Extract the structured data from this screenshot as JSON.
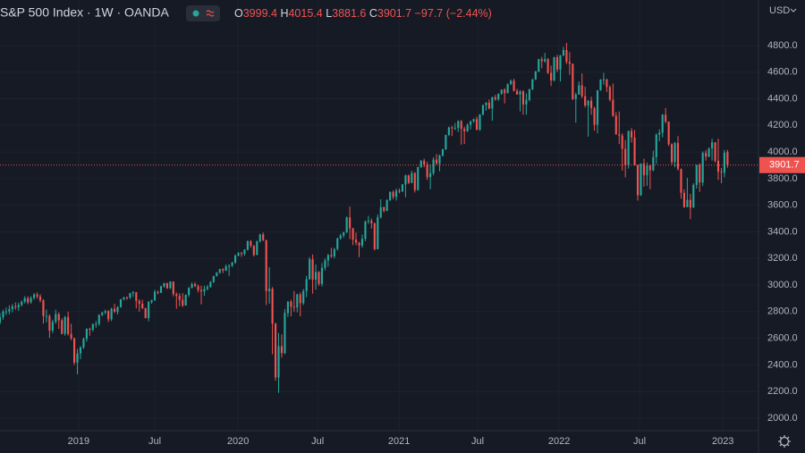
{
  "chart_data": {
    "type": "candlestick",
    "title": "S&P 500 Index · 1W · OANDA",
    "ohlc_labels": [
      "O",
      "H",
      "L",
      "C"
    ],
    "change_label": "−97.7 (−2.44%)",
    "currency": "USD",
    "up_color": "#26a69a",
    "down_color": "#ef5350",
    "grid": true,
    "xlim": [
      0,
      245
    ],
    "xticks": [
      {
        "value": 25.4,
        "label": "2019"
      },
      {
        "value": 50,
        "label": "Jul"
      },
      {
        "value": 76.9,
        "label": "2020"
      },
      {
        "value": 102.6,
        "label": "Jul"
      },
      {
        "value": 128.9,
        "label": "2021"
      },
      {
        "value": 154.3,
        "label": "Jul"
      },
      {
        "value": 180.6,
        "label": "2022"
      },
      {
        "value": 206.6,
        "label": "Jul"
      },
      {
        "value": 233.5,
        "label": "2023"
      }
    ],
    "ylim": [
      1906,
      5142
    ],
    "yticks": [
      {
        "value": 2000,
        "label": "2000.0"
      },
      {
        "value": 2200,
        "label": "2200.0"
      },
      {
        "value": 2400,
        "label": "2400.0"
      },
      {
        "value": 2600,
        "label": "2600.0"
      },
      {
        "value": 2800,
        "label": "2800.0"
      },
      {
        "value": 3000,
        "label": "3000.0"
      },
      {
        "value": 3200,
        "label": "3200.0"
      },
      {
        "value": 3400,
        "label": "3400.0"
      },
      {
        "value": 3600,
        "label": "3600.0"
      },
      {
        "value": 3800,
        "label": "3800.0"
      },
      {
        "value": 4000,
        "label": "4000.0"
      },
      {
        "value": 4200,
        "label": "4200.0"
      },
      {
        "value": 4400,
        "label": "4400.0"
      },
      {
        "value": 4600,
        "label": "4600.0"
      },
      {
        "value": 4800,
        "label": "4800.0"
      }
    ],
    "open": [
      2720,
      2759,
      2801,
      2802,
      2819,
      2840,
      2833,
      2850,
      2875,
      2902,
      2871,
      2904,
      2929,
      2914,
      2885,
      2767,
      2768,
      2658,
      2723,
      2781,
      2736,
      2633,
      2760,
      2633,
      2599,
      2417,
      2486,
      2532,
      2596,
      2671,
      2665,
      2707,
      2708,
      2776,
      2793,
      2804,
      2743,
      2822,
      2800,
      2834,
      2893,
      2907,
      2905,
      2940,
      2946,
      2881,
      2860,
      2826,
      2752,
      2873,
      2887,
      2950,
      2942,
      2990,
      3014,
      2977,
      3026,
      2932,
      2919,
      2889,
      2847,
      2926,
      2979,
      3007,
      2992,
      2962,
      2952,
      2970,
      2986,
      3023,
      3067,
      3093,
      3120,
      3110,
      3141,
      3146,
      3169,
      3221,
      3240,
      3235,
      3265,
      3330,
      3295,
      3226,
      3328,
      3380,
      3338,
      2954,
      2972,
      2711,
      2305,
      2541,
      2489,
      2790,
      2875,
      2837,
      2831,
      2930,
      2864,
      2955,
      3044,
      3194,
      3041,
      3098,
      3009,
      3130,
      3185,
      3225,
      3216,
      3271,
      3351,
      3373,
      3397,
      3508,
      3427,
      3341,
      3319,
      3298,
      3348,
      3477,
      3484,
      3465,
      3270,
      3509,
      3585,
      3558,
      3638,
      3699,
      3663,
      3709,
      3703,
      3756,
      3824,
      3768,
      3841,
      3714,
      3886,
      3934,
      3906,
      3811,
      3841,
      3943,
      3913,
      3974,
      4020,
      4128,
      4185,
      4180,
      4181,
      4232,
      4174,
      4156,
      4204,
      4230,
      4247,
      4166,
      4281,
      4352,
      4370,
      4327,
      4412,
      4395,
      4437,
      4468,
      4442,
      4509,
      4535,
      4459,
      4432,
      4455,
      4357,
      4391,
      4471,
      4545,
      4605,
      4697,
      4682,
      4698,
      4595,
      4538,
      4712,
      4620,
      4725,
      4766,
      4677,
      4663,
      4398,
      4432,
      4501,
      4419,
      4349,
      4385,
      4329,
      4204,
      4463,
      4543,
      4546,
      4488,
      4392,
      4272,
      4132,
      4123,
      4024,
      3901,
      4158,
      4109,
      3901,
      3675,
      3912,
      3825,
      3899,
      3863,
      3962,
      4130,
      4145,
      4280,
      4228,
      4058,
      3924,
      4067,
      3873,
      3693,
      3586,
      3640,
      3583,
      3752,
      3901,
      3771,
      3993,
      3965,
      4026,
      4072,
      3934,
      3852,
      3845,
      3999.4
    ],
    "high": [
      2790,
      2815,
      2832,
      2848,
      2858,
      2870,
      2868,
      2884,
      2916,
      2915,
      2917,
      2940,
      2945,
      2931,
      2894,
      2816,
      2780,
      2740,
      2815,
      2795,
      2750,
      2768,
      2800,
      2709,
      2606,
      2520,
      2540,
      2605,
      2675,
      2680,
      2712,
      2730,
      2780,
      2800,
      2815,
      2812,
      2830,
      2860,
      2842,
      2895,
      2912,
      2915,
      2942,
      2955,
      2948,
      2893,
      2890,
      2830,
      2880,
      2890,
      2965,
      2958,
      2995,
      3018,
      3018,
      3028,
      3028,
      2945,
      2940,
      2940,
      2930,
      2985,
      3020,
      3022,
      3005,
      2995,
      2995,
      3000,
      3030,
      3070,
      3098,
      3122,
      3127,
      3155,
      3155,
      3175,
      3230,
      3248,
      3250,
      3270,
      3335,
      3338,
      3300,
      3335,
      3385,
      3395,
      3340,
      3135,
      2985,
      2715,
      2640,
      2630,
      2820,
      2880,
      2890,
      2955,
      2935,
      2945,
      2970,
      3070,
      3210,
      3230,
      3155,
      3105,
      3165,
      3200,
      3235,
      3280,
      3280,
      3355,
      3385,
      3400,
      3515,
      3590,
      3430,
      3395,
      3325,
      3380,
      3485,
      3520,
      3500,
      3468,
      3530,
      3645,
      3590,
      3645,
      3705,
      3712,
      3725,
      3725,
      3760,
      3830,
      3830,
      3860,
      3850,
      3890,
      3940,
      3950,
      3925,
      3905,
      3960,
      3985,
      3980,
      4025,
      4130,
      4190,
      4195,
      4218,
      4238,
      4240,
      4190,
      4215,
      4235,
      4250,
      4265,
      4285,
      4355,
      4375,
      4395,
      4415,
      4430,
      4440,
      4470,
      4480,
      4515,
      4545,
      4550,
      4475,
      4465,
      4465,
      4440,
      4475,
      4550,
      4610,
      4700,
      4715,
      4745,
      4705,
      4650,
      4715,
      4730,
      4730,
      4790,
      4820,
      4750,
      4665,
      4445,
      4530,
      4590,
      4490,
      4390,
      4415,
      4340,
      4465,
      4548,
      4595,
      4550,
      4500,
      4515,
      4300,
      4305,
      4140,
      4090,
      4160,
      4180,
      4165,
      3905,
      3915,
      3950,
      3920,
      3905,
      4010,
      4140,
      4170,
      4285,
      4330,
      4230,
      4065,
      4075,
      4120,
      3875,
      3720,
      3805,
      3685,
      3765,
      3905,
      3915,
      4005,
      4015,
      4035,
      4100,
      4075,
      4100,
      3880,
      4015,
      4015.4
    ],
    "low": [
      2705,
      2740,
      2775,
      2780,
      2795,
      2815,
      2806,
      2840,
      2862,
      2855,
      2860,
      2890,
      2898,
      2870,
      2710,
      2720,
      2603,
      2640,
      2710,
      2670,
      2630,
      2620,
      2621,
      2585,
      2400,
      2330,
      2443,
      2520,
      2575,
      2620,
      2650,
      2680,
      2695,
      2765,
      2780,
      2722,
      2730,
      2790,
      2780,
      2830,
      2885,
      2890,
      2895,
      2910,
      2825,
      2800,
      2820,
      2750,
      2728,
      2860,
      2880,
      2930,
      2940,
      2980,
      2970,
      2970,
      2915,
      2822,
      2840,
      2835,
      2845,
      2910,
      2975,
      2985,
      2945,
      2855,
      2920,
      2960,
      2980,
      3015,
      3065,
      3085,
      3090,
      3105,
      3070,
      3135,
      3160,
      3215,
      3212,
      3220,
      3260,
      3280,
      3215,
      3225,
      3320,
      3330,
      2850,
      2860,
      2480,
      2280,
      2190,
      2455,
      2480,
      2760,
      2765,
      2800,
      2795,
      2765,
      2850,
      2910,
      3040,
      2935,
      2965,
      2995,
      2990,
      3110,
      3140,
      3205,
      3200,
      3260,
      3340,
      3355,
      3390,
      3345,
      3300,
      3300,
      3210,
      3280,
      3330,
      3460,
      3425,
      3260,
      3268,
      3500,
      3545,
      3555,
      3630,
      3645,
      3635,
      3690,
      3700,
      3660,
      3760,
      3765,
      3695,
      3710,
      3880,
      3885,
      3790,
      3720,
      3825,
      3905,
      3855,
      3965,
      4015,
      4120,
      4120,
      4165,
      4150,
      4055,
      4060,
      4150,
      4170,
      4220,
      4165,
      4160,
      4275,
      4310,
      4320,
      4235,
      4385,
      4385,
      4430,
      4365,
      4440,
      4505,
      4455,
      4430,
      4305,
      4280,
      4280,
      4380,
      4465,
      4540,
      4600,
      4630,
      4670,
      4585,
      4495,
      4530,
      4600,
      4530,
      4720,
      4660,
      4580,
      4390,
      4220,
      4430,
      4405,
      4335,
      4115,
      4280,
      4160,
      4140,
      4460,
      4505,
      4450,
      4380,
      4265,
      4130,
      4060,
      3860,
      3810,
      3875,
      4070,
      3900,
      3635,
      3670,
      3740,
      3745,
      3720,
      3855,
      3910,
      4080,
      4110,
      4215,
      4045,
      3905,
      3885,
      3860,
      3650,
      3580,
      3585,
      3495,
      3580,
      3725,
      3700,
      3745,
      3935,
      3960,
      3935,
      3920,
      3790,
      3765,
      3810,
      3881.6
    ],
    "close": [
      2759,
      2801,
      2802,
      2819,
      2840,
      2833,
      2850,
      2875,
      2902,
      2871,
      2904,
      2929,
      2914,
      2885,
      2767,
      2768,
      2658,
      2723,
      2781,
      2736,
      2633,
      2760,
      2633,
      2599,
      2417,
      2486,
      2532,
      2596,
      2671,
      2665,
      2707,
      2708,
      2776,
      2793,
      2804,
      2743,
      2822,
      2800,
      2834,
      2893,
      2907,
      2905,
      2940,
      2946,
      2881,
      2860,
      2826,
      2752,
      2873,
      2887,
      2950,
      2942,
      2990,
      3014,
      2977,
      3026,
      2932,
      2919,
      2889,
      2847,
      2926,
      2979,
      3007,
      2992,
      2962,
      2952,
      2970,
      2986,
      3023,
      3067,
      3093,
      3120,
      3110,
      3141,
      3146,
      3169,
      3221,
      3240,
      3235,
      3265,
      3330,
      3295,
      3226,
      3328,
      3380,
      3338,
      2954,
      2972,
      2711,
      2305,
      2541,
      2489,
      2790,
      2875,
      2837,
      2831,
      2930,
      2864,
      2955,
      3044,
      3194,
      3041,
      3098,
      3009,
      3130,
      3185,
      3225,
      3216,
      3271,
      3351,
      3373,
      3397,
      3508,
      3427,
      3341,
      3319,
      3298,
      3348,
      3477,
      3484,
      3465,
      3270,
      3509,
      3585,
      3558,
      3638,
      3699,
      3663,
      3709,
      3703,
      3756,
      3824,
      3768,
      3841,
      3714,
      3886,
      3934,
      3906,
      3811,
      3841,
      3943,
      3913,
      3974,
      4020,
      4128,
      4185,
      4180,
      4181,
      4232,
      4174,
      4156,
      4204,
      4230,
      4247,
      4166,
      4281,
      4352,
      4370,
      4327,
      4412,
      4395,
      4437,
      4468,
      4442,
      4509,
      4535,
      4459,
      4432,
      4455,
      4357,
      4391,
      4471,
      4545,
      4605,
      4697,
      4682,
      4698,
      4595,
      4538,
      4712,
      4620,
      4725,
      4766,
      4677,
      4663,
      4398,
      4432,
      4501,
      4419,
      4349,
      4385,
      4329,
      4204,
      4463,
      4543,
      4546,
      4488,
      4392,
      4272,
      4132,
      4123,
      4024,
      3901,
      4158,
      4109,
      3901,
      3675,
      3912,
      3825,
      3899,
      3863,
      3962,
      4130,
      4145,
      4280,
      4228,
      4058,
      3924,
      4067,
      3873,
      3693,
      3586,
      3640,
      3583,
      3752,
      3901,
      3771,
      3993,
      3965,
      4026,
      4072,
      3934,
      3852,
      3845,
      3995,
      3901.7
    ]
  }
}
